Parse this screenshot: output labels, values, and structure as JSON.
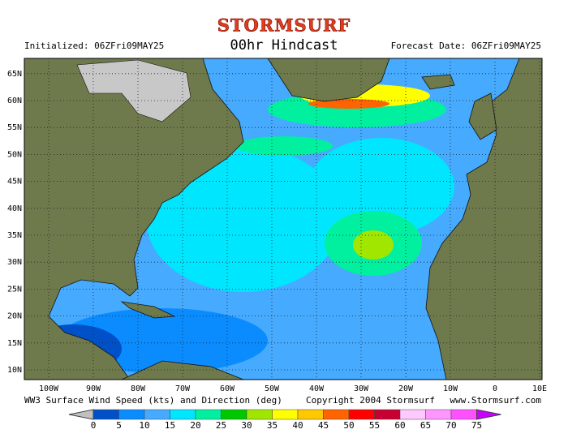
{
  "header": {
    "logo": "STORMSURF",
    "title": "00hr Hindcast",
    "initialized": "Initialized: 06ZFri09MAY25",
    "forecast_date": "Forecast Date: 06ZFri09MAY25"
  },
  "map": {
    "lon_ticks": [
      {
        "value": -100,
        "label": "100W"
      },
      {
        "value": -90,
        "label": "90W"
      },
      {
        "value": -80,
        "label": "80W"
      },
      {
        "value": -70,
        "label": "70W"
      },
      {
        "value": -60,
        "label": "60W"
      },
      {
        "value": -50,
        "label": "50W"
      },
      {
        "value": -40,
        "label": "40W"
      },
      {
        "value": -30,
        "label": "30W"
      },
      {
        "value": -20,
        "label": "20W"
      },
      {
        "value": -10,
        "label": "10W"
      },
      0,
      {
        "value": 10,
        "label": "10E"
      }
    ],
    "lat_ticks": [
      {
        "value": 65,
        "label": "65N"
      },
      {
        "value": 60,
        "label": "60N"
      },
      {
        "value": 55,
        "label": "55N"
      },
      {
        "value": 50,
        "label": "50N"
      },
      {
        "value": 45,
        "label": "45N"
      },
      {
        "value": 40,
        "label": "40N"
      },
      {
        "value": 35,
        "label": "35N"
      },
      {
        "value": 30,
        "label": "30N"
      },
      {
        "value": 25,
        "label": "25N"
      },
      {
        "value": 20,
        "label": "20N"
      },
      {
        "value": 15,
        "label": "15N"
      },
      {
        "value": 10,
        "label": "10N"
      }
    ]
  },
  "footer": {
    "caption": "WW3 Surface Wind Speed (kts) and Direction (deg)",
    "copyright": "Copyright 2004 Stormsurf",
    "url": "www.Stormsurf.com"
  },
  "colorbar": {
    "bounds": [
      0,
      5,
      10,
      15,
      20,
      25,
      30,
      35,
      40,
      45,
      50,
      55,
      60,
      65,
      70,
      75
    ],
    "colors": [
      "#c0c0c0",
      "#0050c8",
      "#0a8cff",
      "#46aaff",
      "#00e6ff",
      "#00f0a0",
      "#00c800",
      "#a0e600",
      "#ffff00",
      "#ffc800",
      "#ff6400",
      "#ff0000",
      "#c80032",
      "#ffc8ff",
      "#ff96ff",
      "#ff50ff",
      "#c800ff"
    ]
  }
}
